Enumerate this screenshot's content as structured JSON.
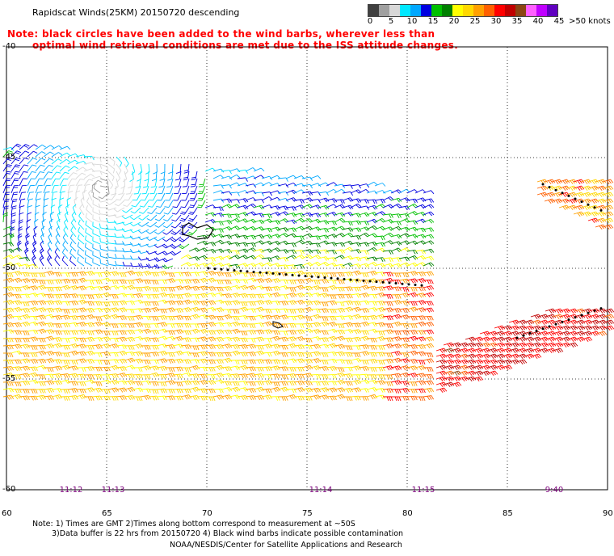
{
  "title": "Rapidscat Winds(25KM) 20150720 descending",
  "note_line1": "Note: black circles have been added to the wind barbs, wherever less than",
  "note_line2": "optimal wind retrieval conditions are met due to the ISS attitude changes.",
  "colorbar": {
    "labels": [
      "0",
      "5",
      "10",
      "15",
      "20",
      "25",
      "30",
      "35",
      "40",
      "45",
      ">50 knots"
    ],
    "colors": [
      "#404040",
      "#a0a0a0",
      "#d8d8d8",
      "#00e8ff",
      "#00a8ff",
      "#0000e0",
      "#00c000",
      "#008000",
      "#ffff00",
      "#ffd800",
      "#ffa000",
      "#ff6000",
      "#ff0000",
      "#c00000",
      "#8b4513",
      "#ff60ff",
      "#c000ff",
      "#6000c0"
    ]
  },
  "axes": {
    "lon_ticks": [
      "60",
      "65",
      "70",
      "75",
      "80",
      "85",
      "90"
    ],
    "lat_ticks": [
      "-40",
      "-45",
      "-50",
      "-55",
      "-60"
    ]
  },
  "times": [
    "11:12",
    "11:13",
    "11:14",
    "11:15",
    "9:40"
  ],
  "footer": {
    "line1": "Note: 1) Times are GMT 2)Times along bottom correspond to measurement at ~50S",
    "line2": "3)Data buffer is 22 hrs from 20150720 4) Black wind barbs indicate possible contamination",
    "line3": "NOAA/NESDIS/Center for Satellite Applications and Research"
  }
}
